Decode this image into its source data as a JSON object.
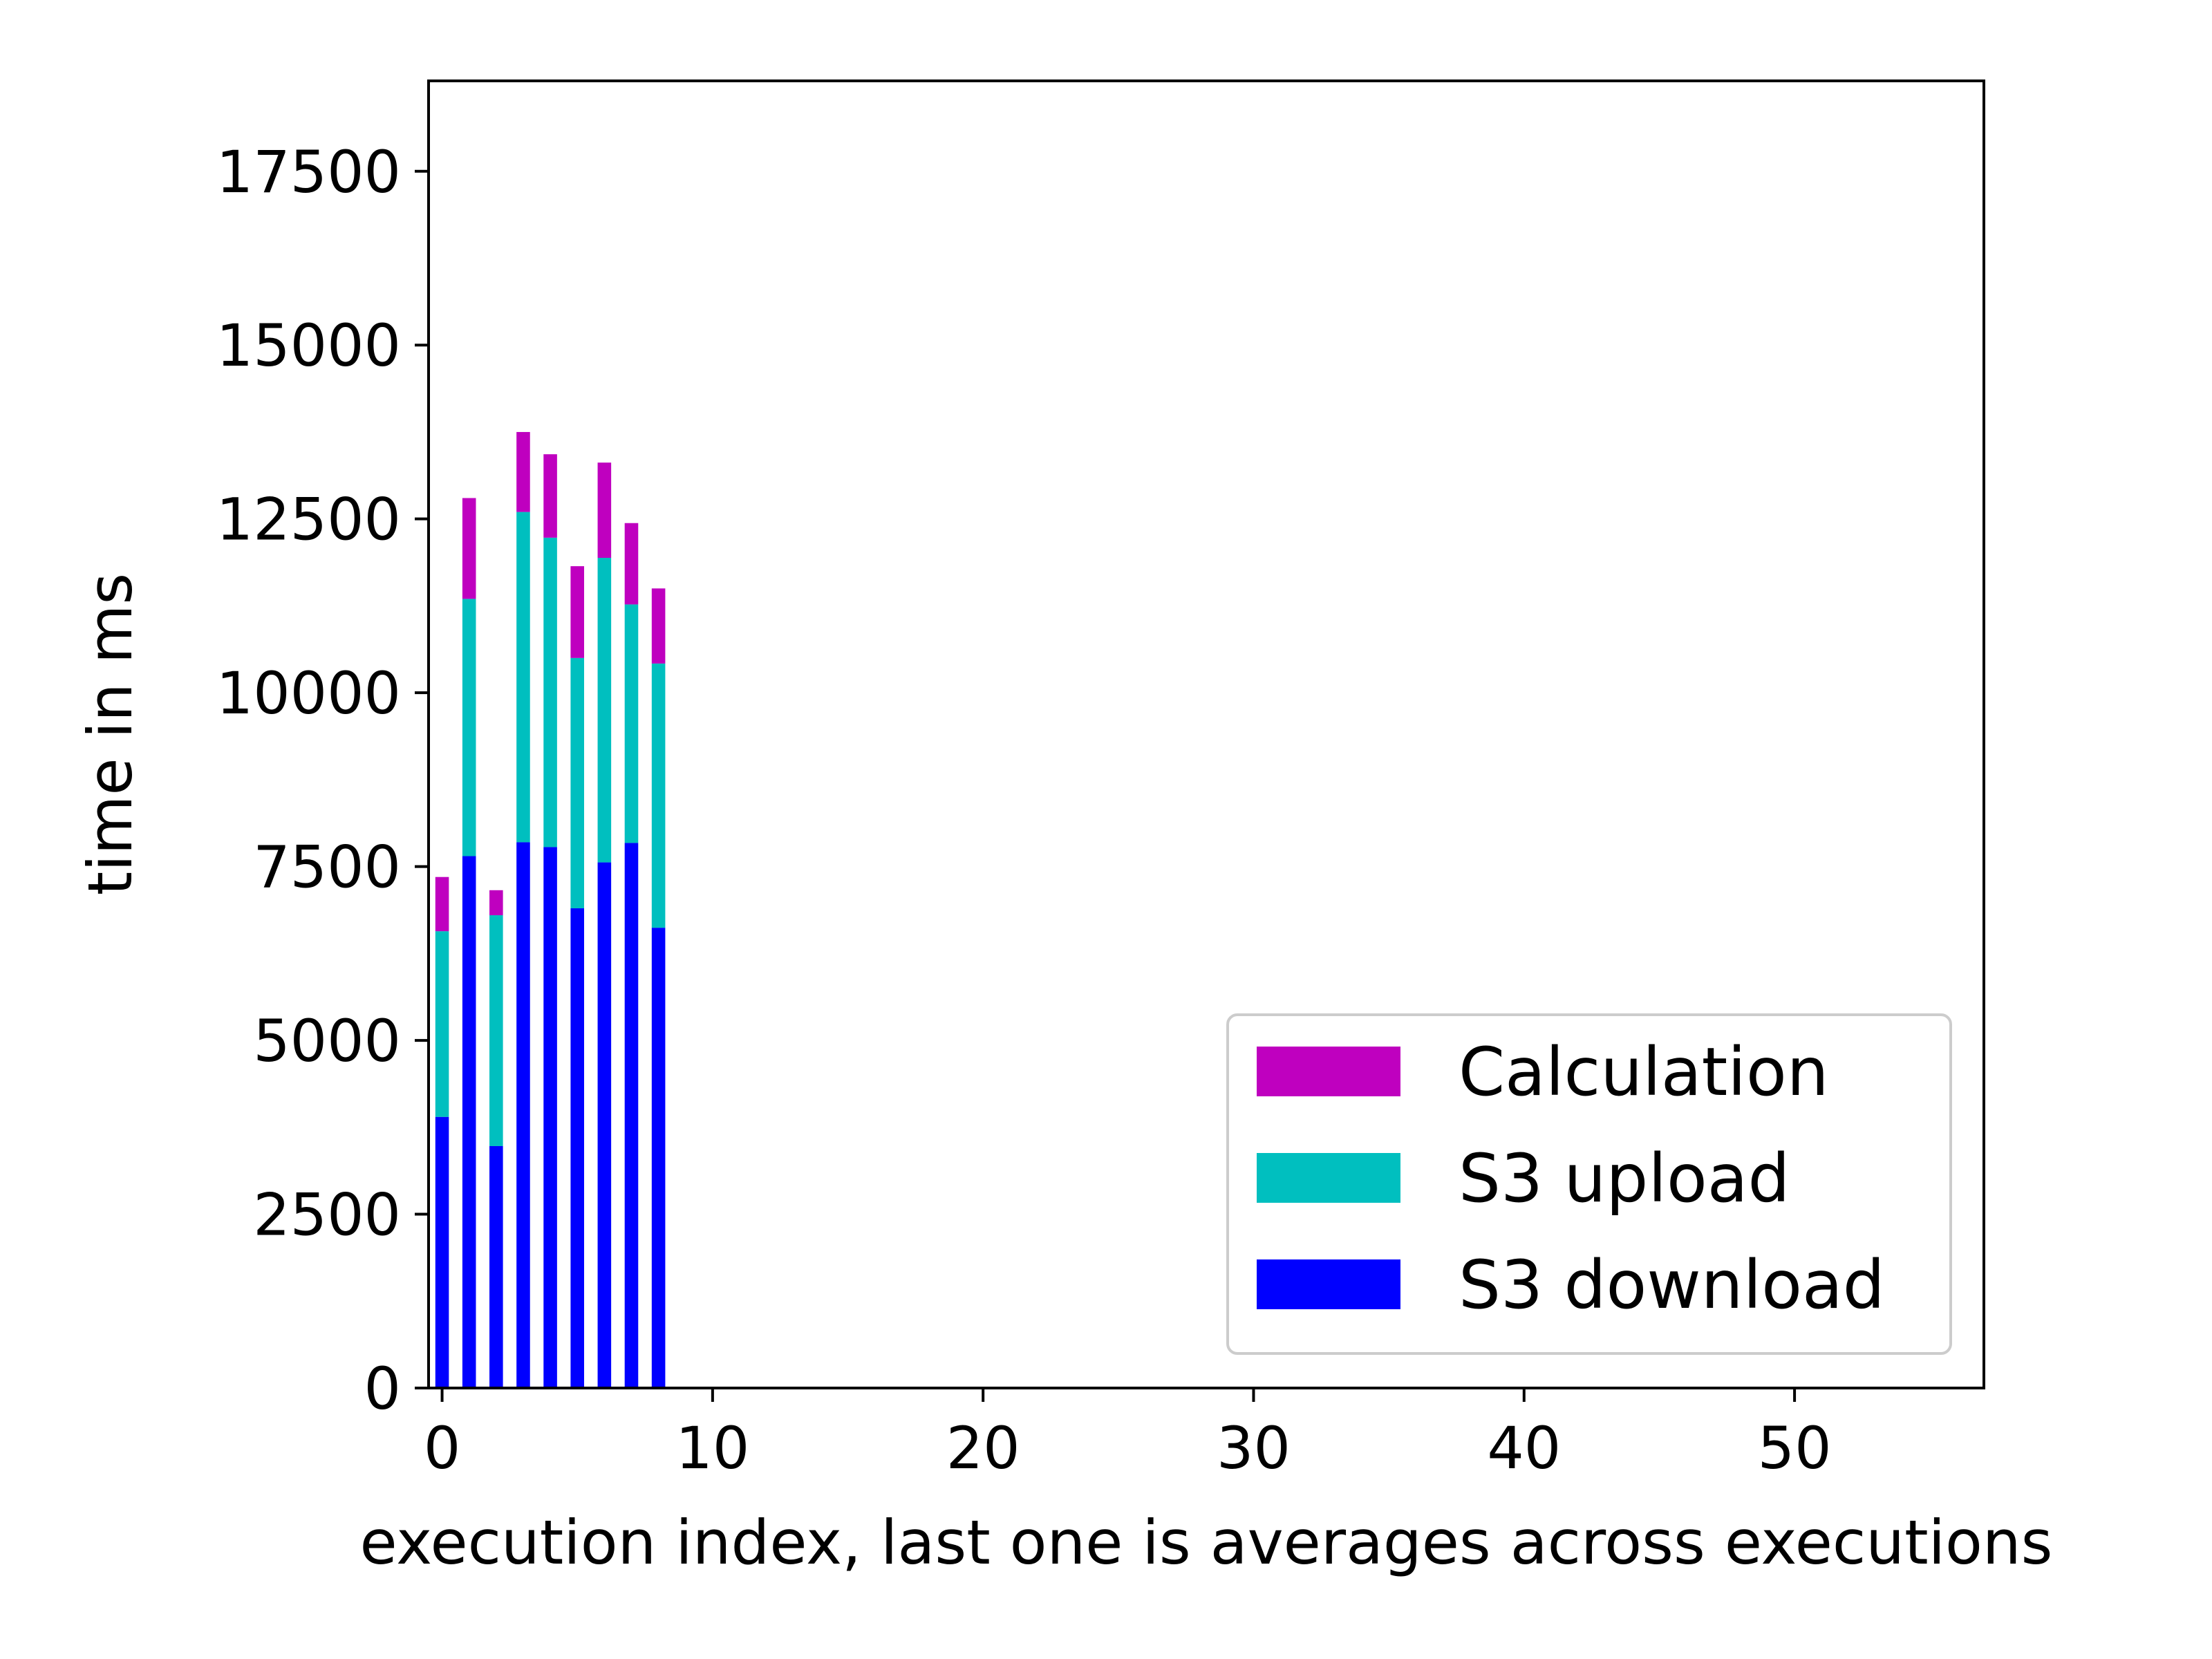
{
  "chart_data": {
    "type": "bar",
    "stacked": true,
    "xlabel": "execution index, last one is averages across executions",
    "ylabel": "time in ms",
    "xlim": [
      -0.5,
      57
    ],
    "ylim": [
      0,
      18800
    ],
    "xticks": [
      0,
      10,
      20,
      30,
      40,
      50
    ],
    "yticks": [
      0,
      2500,
      5000,
      7500,
      10000,
      12500,
      15000,
      17500
    ],
    "grid": false,
    "legend_position": "lower-right",
    "x": [
      0,
      1,
      2,
      3,
      4,
      5,
      6,
      7,
      8
    ],
    "series": [
      {
        "name": "S3 download",
        "color": "#0000ff",
        "values": [
          3900,
          7650,
          3480,
          7850,
          7780,
          6900,
          7560,
          7840,
          6620
        ]
      },
      {
        "name": "S3 upload",
        "color": "#00bfbf",
        "values": [
          2670,
          3700,
          3320,
          4750,
          4450,
          3600,
          4380,
          3430,
          3800
        ]
      },
      {
        "name": "Calculation",
        "color": "#bf00bf",
        "values": [
          780,
          1450,
          360,
          1150,
          1200,
          1320,
          1370,
          1170,
          1080
        ]
      }
    ],
    "legend_order": [
      "Calculation",
      "S3 upload",
      "S3 download"
    ]
  }
}
